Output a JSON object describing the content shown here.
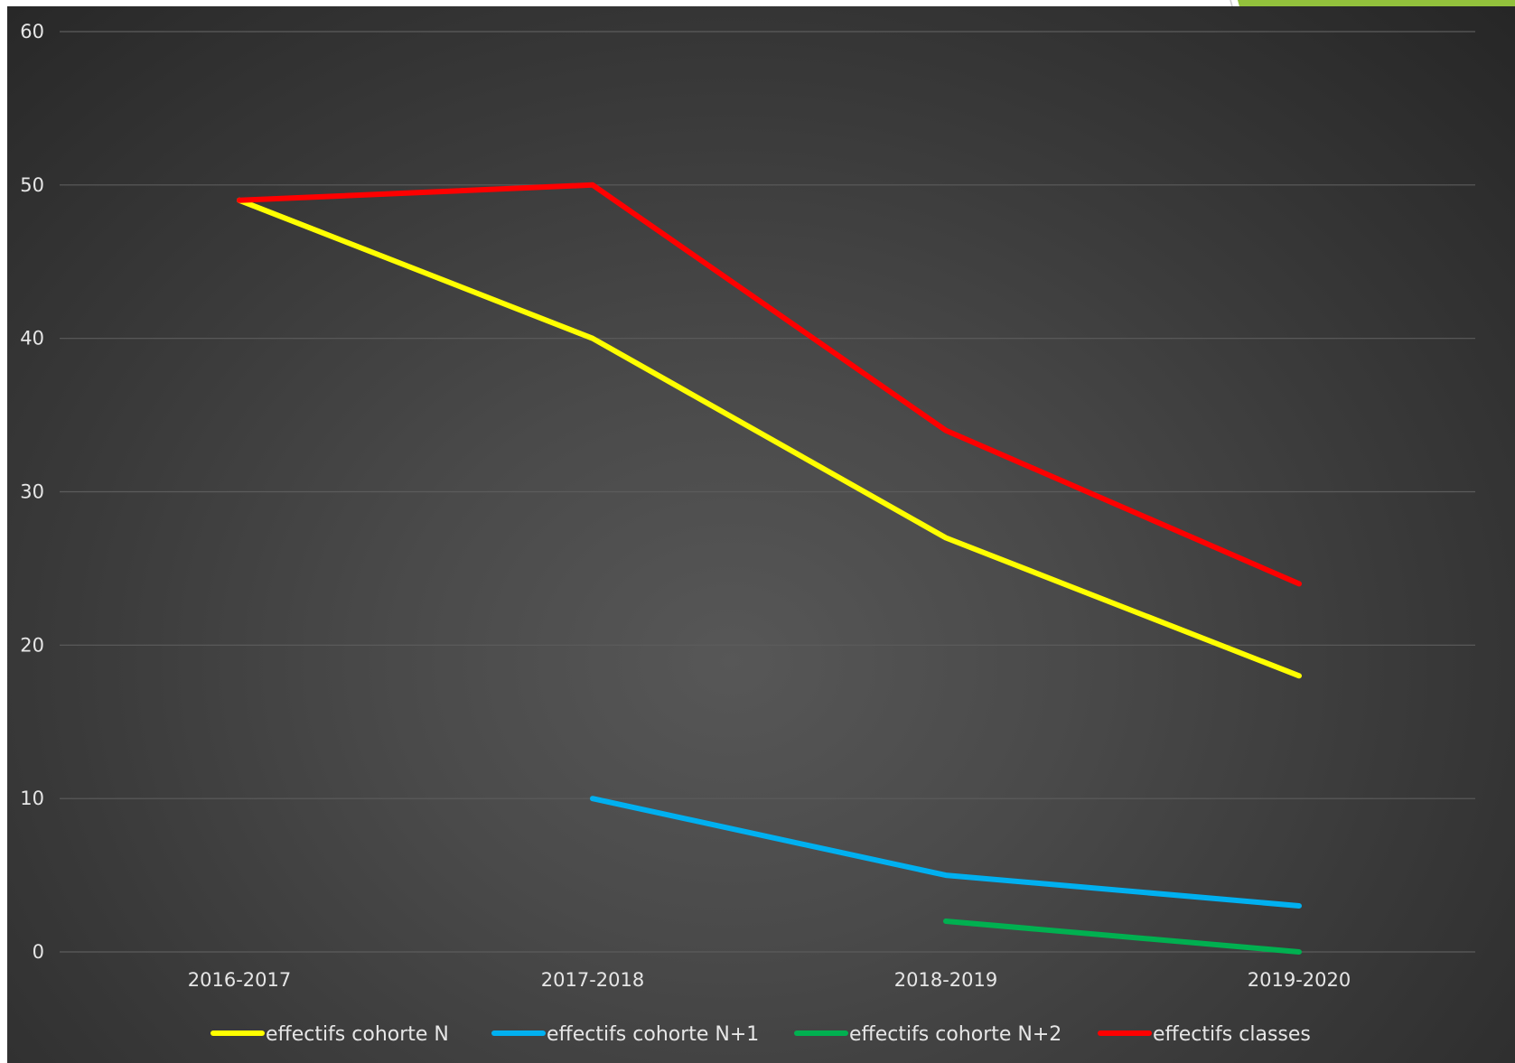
{
  "chart_data": {
    "type": "line",
    "categories": [
      "2016-2017",
      "2017-2018",
      "2018-2019",
      "2019-2020"
    ],
    "ylim": [
      0,
      60
    ],
    "yticks": [
      0,
      10,
      20,
      30,
      40,
      50,
      60
    ],
    "grid": true,
    "legend_position": "bottom",
    "series": [
      {
        "name": "effectifs cohorte N",
        "color": "#ffff00",
        "values": [
          49,
          40,
          27,
          18
        ]
      },
      {
        "name": "effectifs cohorte N+1",
        "color": "#00b0f0",
        "values": [
          null,
          10,
          5,
          3
        ]
      },
      {
        "name": "effectifs cohorte N+2",
        "color": "#00b050",
        "values": [
          null,
          null,
          2,
          0
        ]
      },
      {
        "name": "effectifs classes",
        "color": "#ff0000",
        "values": [
          49,
          50,
          34,
          24
        ]
      }
    ]
  },
  "theme": {
    "accent": "#92c13c",
    "background": "#3c3c3c",
    "text": "#e6e6e6",
    "gridline": "#5c5c5c"
  }
}
